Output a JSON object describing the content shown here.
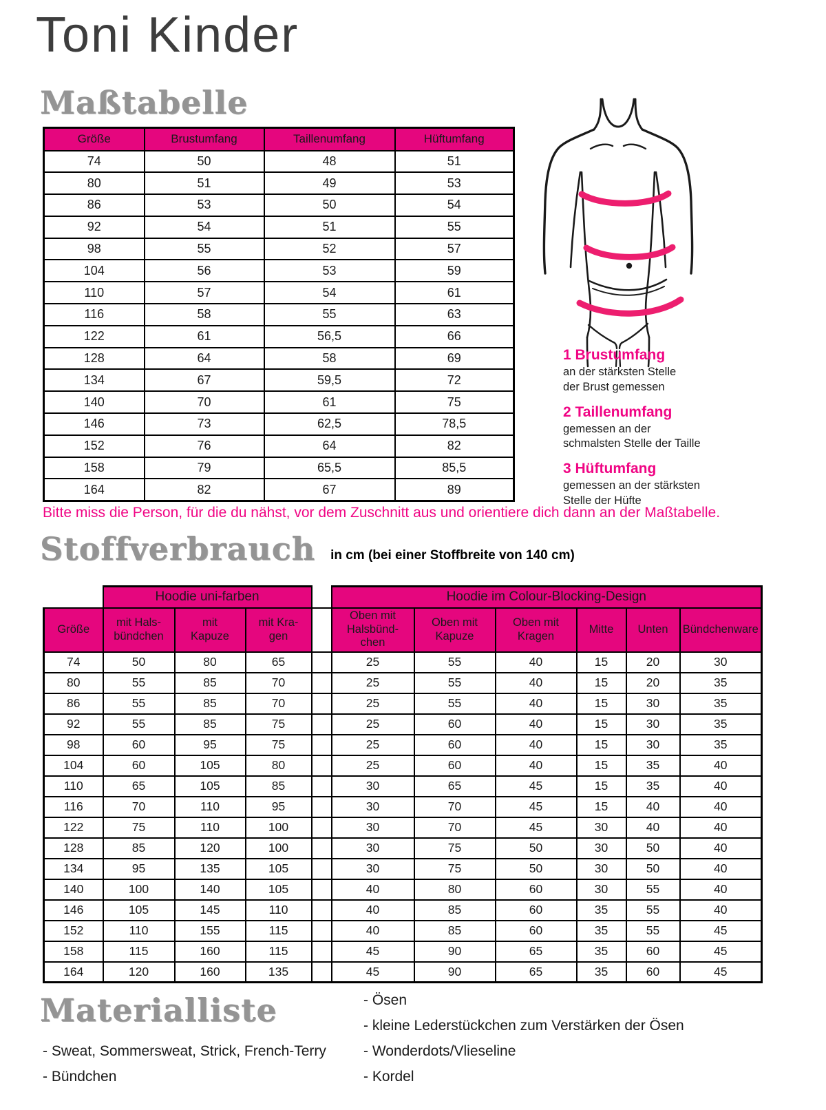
{
  "page": {
    "title": "Toni Kinder"
  },
  "colors": {
    "accent_pink": "#e5067e",
    "text_pink": "#f00584",
    "band_pink": "#ed1e6f",
    "heading_gray": "#949494"
  },
  "masstabelle": {
    "heading": "Maßtabelle",
    "table": {
      "headers": [
        "Größe",
        "Brustumfang",
        "Taillenumfang",
        "Hüftumfang"
      ],
      "rows": [
        [
          "74",
          "50",
          "48",
          "51"
        ],
        [
          "80",
          "51",
          "49",
          "53"
        ],
        [
          "86",
          "53",
          "50",
          "54"
        ],
        [
          "92",
          "54",
          "51",
          "55"
        ],
        [
          "98",
          "55",
          "52",
          "57"
        ],
        [
          "104",
          "56",
          "53",
          "59"
        ],
        [
          "110",
          "57",
          "54",
          "61"
        ],
        [
          "116",
          "58",
          "55",
          "63"
        ],
        [
          "122",
          "61",
          "56,5",
          "66"
        ],
        [
          "128",
          "64",
          "58",
          "69"
        ],
        [
          "134",
          "67",
          "59,5",
          "72"
        ],
        [
          "140",
          "70",
          "61",
          "75"
        ],
        [
          "146",
          "73",
          "62,5",
          "78,5"
        ],
        [
          "152",
          "76",
          "64",
          "82"
        ],
        [
          "158",
          "79",
          "65,5",
          "85,5"
        ],
        [
          "164",
          "82",
          "67",
          "89"
        ]
      ]
    },
    "legend": [
      {
        "title": "1 Brustumfang",
        "line1": "an der stärksten Stelle",
        "line2": "der Brust gemessen"
      },
      {
        "title": "2 Taillenumfang",
        "line1": "gemessen an der",
        "line2": "schmalsten Stelle der Taille"
      },
      {
        "title": "3 Hüftumfang",
        "line1": "gemessen an der stärksten",
        "line2": "Stelle der Hüfte"
      }
    ],
    "note": "Bitte miss die Person, für die du nähst, vor dem Zuschnitt aus und orientiere dich dann an der Maßtabelle."
  },
  "stoffverbrauch": {
    "heading": "Stoffverbrauch",
    "subtitle": "in cm (bei einer Stoffbreite von 140 cm)",
    "groups": {
      "uni": "Hoodie uni-farben",
      "colour_blocking": "Hoodie im Colour-Blocking-Design"
    },
    "columns": [
      "Größe",
      "mit Hals-\nbündchen",
      "mit\nKapuze",
      "mit Kra-\ngen",
      "Oben mit\nHalsbünd-\nchen",
      "Oben mit\nKapuze",
      "Oben mit\nKragen",
      "Mitte",
      "Unten",
      "Bündchenware"
    ],
    "rows": [
      [
        "74",
        "50",
        "80",
        "65",
        "25",
        "55",
        "40",
        "15",
        "20",
        "30"
      ],
      [
        "80",
        "55",
        "85",
        "70",
        "25",
        "55",
        "40",
        "15",
        "20",
        "35"
      ],
      [
        "86",
        "55",
        "85",
        "70",
        "25",
        "55",
        "40",
        "15",
        "30",
        "35"
      ],
      [
        "92",
        "55",
        "85",
        "75",
        "25",
        "60",
        "40",
        "15",
        "30",
        "35"
      ],
      [
        "98",
        "60",
        "95",
        "75",
        "25",
        "60",
        "40",
        "15",
        "30",
        "35"
      ],
      [
        "104",
        "60",
        "105",
        "80",
        "25",
        "60",
        "40",
        "15",
        "35",
        "40"
      ],
      [
        "110",
        "65",
        "105",
        "85",
        "30",
        "65",
        "45",
        "15",
        "35",
        "40"
      ],
      [
        "116",
        "70",
        "110",
        "95",
        "30",
        "70",
        "45",
        "15",
        "40",
        "40"
      ],
      [
        "122",
        "75",
        "110",
        "100",
        "30",
        "70",
        "45",
        "30",
        "40",
        "40"
      ],
      [
        "128",
        "85",
        "120",
        "100",
        "30",
        "75",
        "50",
        "30",
        "50",
        "40"
      ],
      [
        "134",
        "95",
        "135",
        "105",
        "30",
        "75",
        "50",
        "30",
        "50",
        "40"
      ],
      [
        "140",
        "100",
        "140",
        "105",
        "40",
        "80",
        "60",
        "30",
        "55",
        "40"
      ],
      [
        "146",
        "105",
        "145",
        "110",
        "40",
        "85",
        "60",
        "35",
        "55",
        "40"
      ],
      [
        "152",
        "110",
        "155",
        "115",
        "40",
        "85",
        "60",
        "35",
        "55",
        "45"
      ],
      [
        "158",
        "115",
        "160",
        "115",
        "45",
        "90",
        "65",
        "35",
        "60",
        "45"
      ],
      [
        "164",
        "120",
        "160",
        "135",
        "45",
        "90",
        "65",
        "35",
        "60",
        "45"
      ]
    ]
  },
  "materialliste": {
    "heading": "Materialliste",
    "left": [
      "- Sweat, Sommersweat, Strick, French-Terry",
      "- Bündchen"
    ],
    "right": [
      "- Ösen",
      "- kleine Lederstückchen zum Verstärken der Ösen",
      "- Wonderdots/Vlieseline",
      "- Kordel"
    ]
  }
}
